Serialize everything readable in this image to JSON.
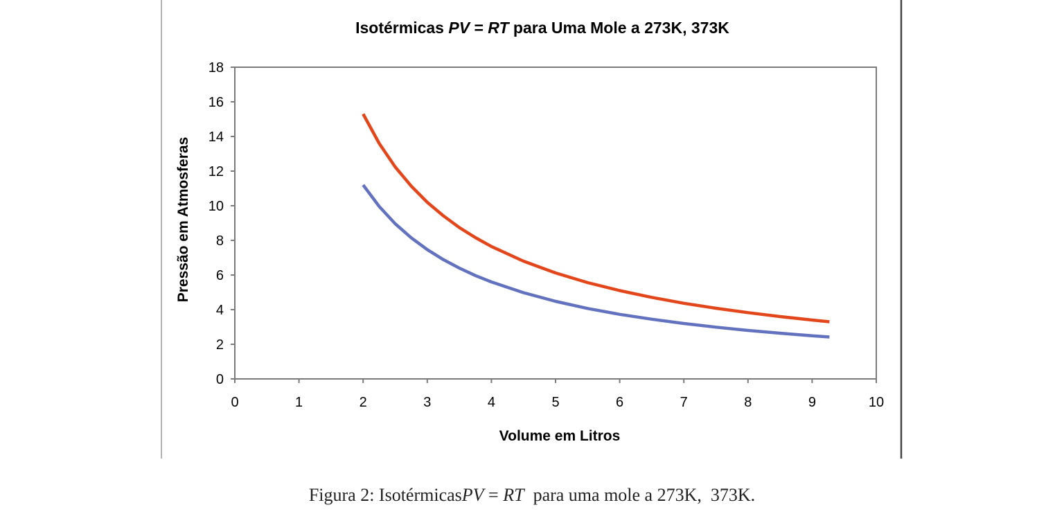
{
  "chart_data": {
    "type": "line",
    "title": {
      "prefix": "Isotérmicas ",
      "eq_lhs": "PV",
      "eq_sign": " = ",
      "eq_rhs": "RT",
      "suffix": " para Uma Mole a 273K, 373K"
    },
    "xlabel": "Volume em Litros",
    "ylabel": "Pressão em Atmosferas",
    "xlim": [
      0,
      10
    ],
    "ylim": [
      0,
      18
    ],
    "x_ticks": [
      0,
      1,
      2,
      3,
      4,
      5,
      6,
      7,
      8,
      9,
      10
    ],
    "y_ticks": [
      0,
      2,
      4,
      6,
      8,
      10,
      12,
      14,
      16,
      18
    ],
    "grid": false,
    "legend": "none",
    "series": [
      {
        "color": "#e2461a",
        "x": [
          2,
          2.25,
          2.5,
          2.75,
          3,
          3.25,
          3.5,
          3.75,
          4,
          4.5,
          5,
          5.5,
          6,
          6.5,
          7,
          7.5,
          8,
          8.5,
          9,
          9.27
        ],
        "y": [
          15.3,
          13.6,
          12.24,
          11.13,
          10.2,
          9.42,
          8.74,
          8.16,
          7.65,
          6.8,
          6.12,
          5.56,
          5.1,
          4.71,
          4.37,
          4.08,
          3.83,
          3.6,
          3.4,
          3.3
        ]
      },
      {
        "color": "#6272bf",
        "x": [
          2,
          2.25,
          2.5,
          2.75,
          3,
          3.25,
          3.5,
          3.75,
          4,
          4.5,
          5,
          5.5,
          6,
          6.5,
          7,
          7.5,
          8,
          8.5,
          9,
          9.27
        ],
        "y": [
          11.2,
          9.96,
          8.96,
          8.15,
          7.47,
          6.89,
          6.4,
          5.97,
          5.6,
          4.98,
          4.48,
          4.07,
          3.73,
          3.45,
          3.2,
          2.99,
          2.8,
          2.64,
          2.49,
          2.42
        ]
      }
    ]
  },
  "caption": {
    "prefix": "Figura 2: Isotérmicas",
    "eq_lhs": "PV",
    "eq_sign": " = ",
    "eq_rhs": "RT",
    "suffix": "  para uma mole a 273K,  373K."
  }
}
